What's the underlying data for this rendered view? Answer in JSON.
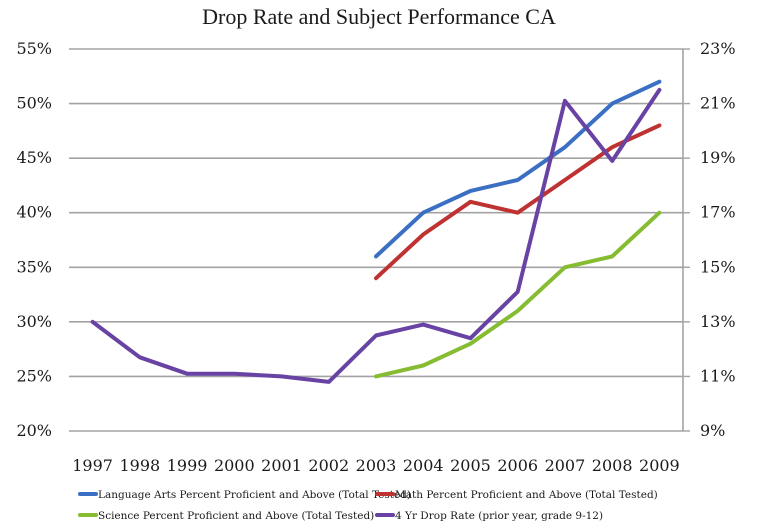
{
  "chart_data": {
    "type": "line",
    "title": "Drop Rate and Subject Performance CA",
    "xlabel": "",
    "ylabel": "",
    "y2label": "",
    "categories": [
      "1997",
      "1998",
      "1999",
      "2000",
      "2001",
      "2002",
      "2003",
      "2004",
      "2005",
      "2006",
      "2007",
      "2008",
      "2009"
    ],
    "y_axis_left": {
      "range": [
        0.2,
        0.55
      ],
      "ticks": [
        0.55,
        0.5,
        0.45,
        0.4,
        0.35,
        0.3,
        0.25,
        0.2
      ],
      "tick_labels": [
        "55%",
        "50%",
        "45%",
        "40%",
        "35%",
        "30%",
        "25%",
        "20%"
      ]
    },
    "y_axis_right": {
      "range": [
        0.09,
        0.23
      ],
      "ticks": [
        0.23,
        0.21,
        0.19,
        0.17,
        0.15,
        0.13,
        0.11,
        0.09
      ],
      "tick_labels": [
        "23%",
        "21%",
        "19%",
        "17%",
        "15%",
        "13%",
        "11%",
        "9%"
      ]
    },
    "grid": true,
    "legend_position": "bottom",
    "series": [
      {
        "name": "Language Arts Percent Proficient and Above (Total Tested)",
        "axis": "left",
        "color": "#3b6fc3",
        "values": [
          null,
          null,
          null,
          null,
          null,
          null,
          0.36,
          0.4,
          0.42,
          0.43,
          0.46,
          0.5,
          0.52
        ]
      },
      {
        "name": "Math Percent Proficient and Above (Total Tested)",
        "axis": "left",
        "color": "#be3231",
        "values": [
          null,
          null,
          null,
          null,
          null,
          null,
          0.34,
          0.38,
          0.41,
          0.4,
          0.43,
          0.46,
          0.48
        ]
      },
      {
        "name": "Science Percent Proficient and Above (Total Tested)",
        "axis": "left",
        "color": "#86bc32",
        "values": [
          null,
          null,
          null,
          null,
          null,
          null,
          0.25,
          0.26,
          0.28,
          0.31,
          0.35,
          0.36,
          0.4
        ]
      },
      {
        "name": "4 Yr Drop Rate (prior year, grade 9-12)",
        "axis": "right",
        "color": "#6843a3",
        "values": [
          0.13,
          0.117,
          0.111,
          0.111,
          0.11,
          0.108,
          0.125,
          0.129,
          0.124,
          0.141,
          0.211,
          0.189,
          0.215
        ]
      }
    ]
  }
}
